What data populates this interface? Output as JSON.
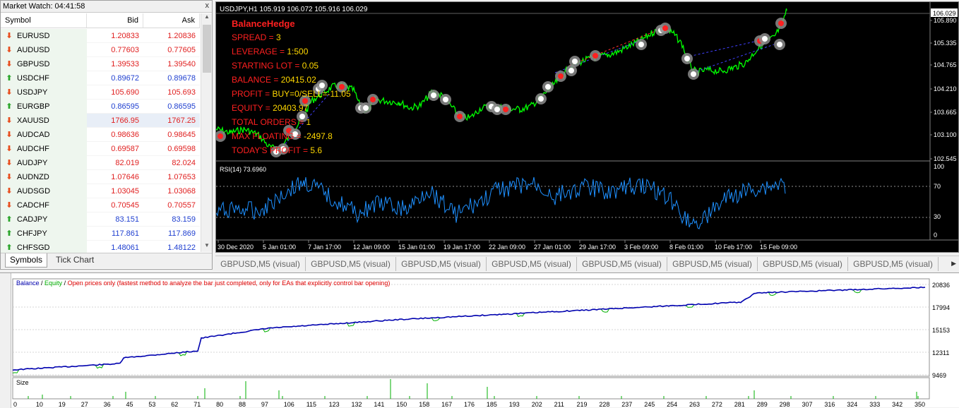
{
  "market_watch": {
    "title": "Market Watch: 04:41:58",
    "close_glyph": "x",
    "columns": {
      "symbol": "Symbol",
      "bid": "Bid",
      "ask": "Ask"
    },
    "rows": [
      {
        "symbol": "EURUSD",
        "bid": "1.20833",
        "ask": "1.20836",
        "dir": "down",
        "color": "red"
      },
      {
        "symbol": "AUDUSD",
        "bid": "0.77603",
        "ask": "0.77605",
        "dir": "down",
        "color": "red"
      },
      {
        "symbol": "GBPUSD",
        "bid": "1.39533",
        "ask": "1.39540",
        "dir": "down",
        "color": "red"
      },
      {
        "symbol": "USDCHF",
        "bid": "0.89672",
        "ask": "0.89678",
        "dir": "up",
        "color": "blue"
      },
      {
        "symbol": "USDJPY",
        "bid": "105.690",
        "ask": "105.693",
        "dir": "down",
        "color": "red"
      },
      {
        "symbol": "EURGBP",
        "bid": "0.86595",
        "ask": "0.86595",
        "dir": "up",
        "color": "blue"
      },
      {
        "symbol": "XAUUSD",
        "bid": "1766.95",
        "ask": "1767.25",
        "dir": "down",
        "color": "red",
        "selected": true
      },
      {
        "symbol": "AUDCAD",
        "bid": "0.98636",
        "ask": "0.98645",
        "dir": "down",
        "color": "red"
      },
      {
        "symbol": "AUDCHF",
        "bid": "0.69587",
        "ask": "0.69598",
        "dir": "down",
        "color": "red"
      },
      {
        "symbol": "AUDJPY",
        "bid": "82.019",
        "ask": "82.024",
        "dir": "down",
        "color": "red"
      },
      {
        "symbol": "AUDNZD",
        "bid": "1.07646",
        "ask": "1.07653",
        "dir": "down",
        "color": "red"
      },
      {
        "symbol": "AUDSGD",
        "bid": "1.03045",
        "ask": "1.03068",
        "dir": "down",
        "color": "red"
      },
      {
        "symbol": "CADCHF",
        "bid": "0.70545",
        "ask": "0.70557",
        "dir": "down",
        "color": "red"
      },
      {
        "symbol": "CADJPY",
        "bid": "83.151",
        "ask": "83.159",
        "dir": "up",
        "color": "blue"
      },
      {
        "symbol": "CHFJPY",
        "bid": "117.861",
        "ask": "117.869",
        "dir": "up",
        "color": "blue"
      },
      {
        "symbol": "CHFSGD",
        "bid": "1.48061",
        "ask": "1.48122",
        "dir": "up",
        "color": "blue"
      }
    ],
    "tabs": [
      "Symbols",
      "Tick Chart"
    ]
  },
  "chart": {
    "header": "USDJPY,H1  105.919 106.072 105.916 106.029",
    "current_price": "106.029",
    "price_ticks": [
      "105.890",
      "105.335",
      "104.765",
      "104.210",
      "103.665",
      "103.100",
      "102.545"
    ],
    "rsi_label": "RSI(14) 73.6960",
    "rsi_ticks": [
      "100",
      "70",
      "30",
      "0"
    ],
    "time_ticks": [
      "30 Dec 2020",
      "5 Jan 01:00",
      "7 Jan 17:00",
      "12 Jan 09:00",
      "15 Jan 01:00",
      "19 Jan 17:00",
      "22 Jan 09:00",
      "27 Jan 01:00",
      "29 Jan 17:00",
      "3 Feb 09:00",
      "8 Feb 01:00",
      "10 Feb 17:00",
      "15 Feb 09:00"
    ],
    "colors": {
      "price_line": "#00ff00",
      "rsi_line": "#1e90ff",
      "label": "#ff2020",
      "value": "#ffd800",
      "background": "#000000"
    },
    "overlay": {
      "name": "BalanceHedge",
      "lines": [
        {
          "label": "SPREAD = ",
          "value": "3"
        },
        {
          "label": "LEVERAGE = ",
          "value": "1:500"
        },
        {
          "label": "STARTING LOT = ",
          "value": "0.05"
        },
        {
          "label": "BALANCE = ",
          "value": "20415.02"
        },
        {
          "label": "PROFIT =  ",
          "value": "BUY=0/SELL=-11.05"
        },
        {
          "label": "EQUITY = ",
          "value": "20403.97"
        },
        {
          "label": "TOTAL ORDERS = ",
          "value": "1"
        },
        {
          "label": "MAX FLOATING = ",
          "value": "-2497.8"
        },
        {
          "label": "TODAY'S PROFIT = ",
          "value": "5.6"
        }
      ]
    }
  },
  "chart_tabs": [
    "GBPUSD,M5 (visual)",
    "GBPUSD,M5 (visual)",
    "GBPUSD,M5 (visual)",
    "GBPUSD,M5 (visual)",
    "GBPUSD,M5 (visual)",
    "GBPUSD,M5 (visual)",
    "GBPUSD,M5 (visual)",
    "GBPUSD,M5 (visual)"
  ],
  "tester_graph": {
    "legend": {
      "balance": "Balance",
      "equity": "Equity",
      "note": "Open prices only (fastest method to analyze the bar just completed, only for EAs that explicitly control bar opening)"
    },
    "y_ticks": [
      "20836",
      "17994",
      "15153",
      "12311",
      "9469"
    ],
    "size_label": "Size",
    "x_ticks": [
      "0",
      "10",
      "19",
      "27",
      "36",
      "45",
      "53",
      "62",
      "71",
      "80",
      "88",
      "97",
      "106",
      "115",
      "123",
      "132",
      "141",
      "150",
      "158",
      "167",
      "176",
      "185",
      "193",
      "202",
      "211",
      "219",
      "228",
      "237",
      "245",
      "254",
      "263",
      "272",
      "281",
      "289",
      "298",
      "307",
      "316",
      "324",
      "333",
      "342",
      "350"
    ],
    "colors": {
      "balance": "#0000b0",
      "equity": "#00b000",
      "note": "#e00000"
    }
  }
}
